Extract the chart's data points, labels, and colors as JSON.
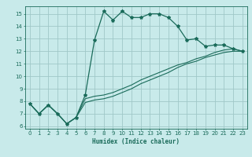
{
  "xlabel": "Humidex (Indice chaleur)",
  "ylabel": "",
  "bg_color": "#c8eaea",
  "grid_color": "#a0c8c8",
  "line_color": "#1a6b5a",
  "xlim": [
    -0.5,
    23.5
  ],
  "ylim": [
    5.8,
    15.6
  ],
  "yticks": [
    6,
    7,
    8,
    9,
    10,
    11,
    12,
    13,
    14,
    15
  ],
  "xticks": [
    0,
    1,
    2,
    3,
    4,
    5,
    6,
    7,
    8,
    9,
    10,
    11,
    12,
    13,
    14,
    15,
    16,
    17,
    18,
    19,
    20,
    21,
    22,
    23
  ],
  "curve1_x": [
    0,
    1,
    2,
    3,
    4,
    5,
    6,
    7,
    8,
    9,
    10,
    11,
    12,
    13,
    14,
    15,
    16,
    17,
    18,
    19,
    20,
    21,
    22,
    23
  ],
  "curve1_y": [
    7.8,
    7.0,
    7.7,
    7.0,
    6.2,
    6.7,
    8.5,
    12.9,
    15.2,
    14.5,
    15.2,
    14.7,
    14.7,
    15.0,
    15.0,
    14.7,
    14.0,
    12.9,
    13.0,
    12.4,
    12.5,
    12.5,
    12.2,
    12.0
  ],
  "curve2_x": [
    0,
    1,
    2,
    3,
    4,
    5,
    6,
    7,
    8,
    9,
    10,
    11,
    12,
    13,
    14,
    15,
    16,
    17,
    18,
    19,
    20,
    21,
    22,
    23
  ],
  "curve2_y": [
    7.8,
    7.0,
    7.7,
    7.0,
    6.2,
    6.7,
    8.2,
    8.4,
    8.5,
    8.7,
    9.0,
    9.3,
    9.7,
    10.0,
    10.3,
    10.6,
    10.9,
    11.1,
    11.4,
    11.6,
    11.9,
    12.1,
    12.2,
    12.0
  ],
  "curve3_x": [
    0,
    1,
    2,
    3,
    4,
    5,
    6,
    7,
    8,
    9,
    10,
    11,
    12,
    13,
    14,
    15,
    16,
    17,
    18,
    19,
    20,
    21,
    22,
    23
  ],
  "curve3_y": [
    7.8,
    7.0,
    7.7,
    7.0,
    6.2,
    6.7,
    7.9,
    8.1,
    8.2,
    8.4,
    8.7,
    9.0,
    9.4,
    9.7,
    10.0,
    10.3,
    10.7,
    11.0,
    11.2,
    11.5,
    11.7,
    11.9,
    12.0,
    12.0
  ]
}
